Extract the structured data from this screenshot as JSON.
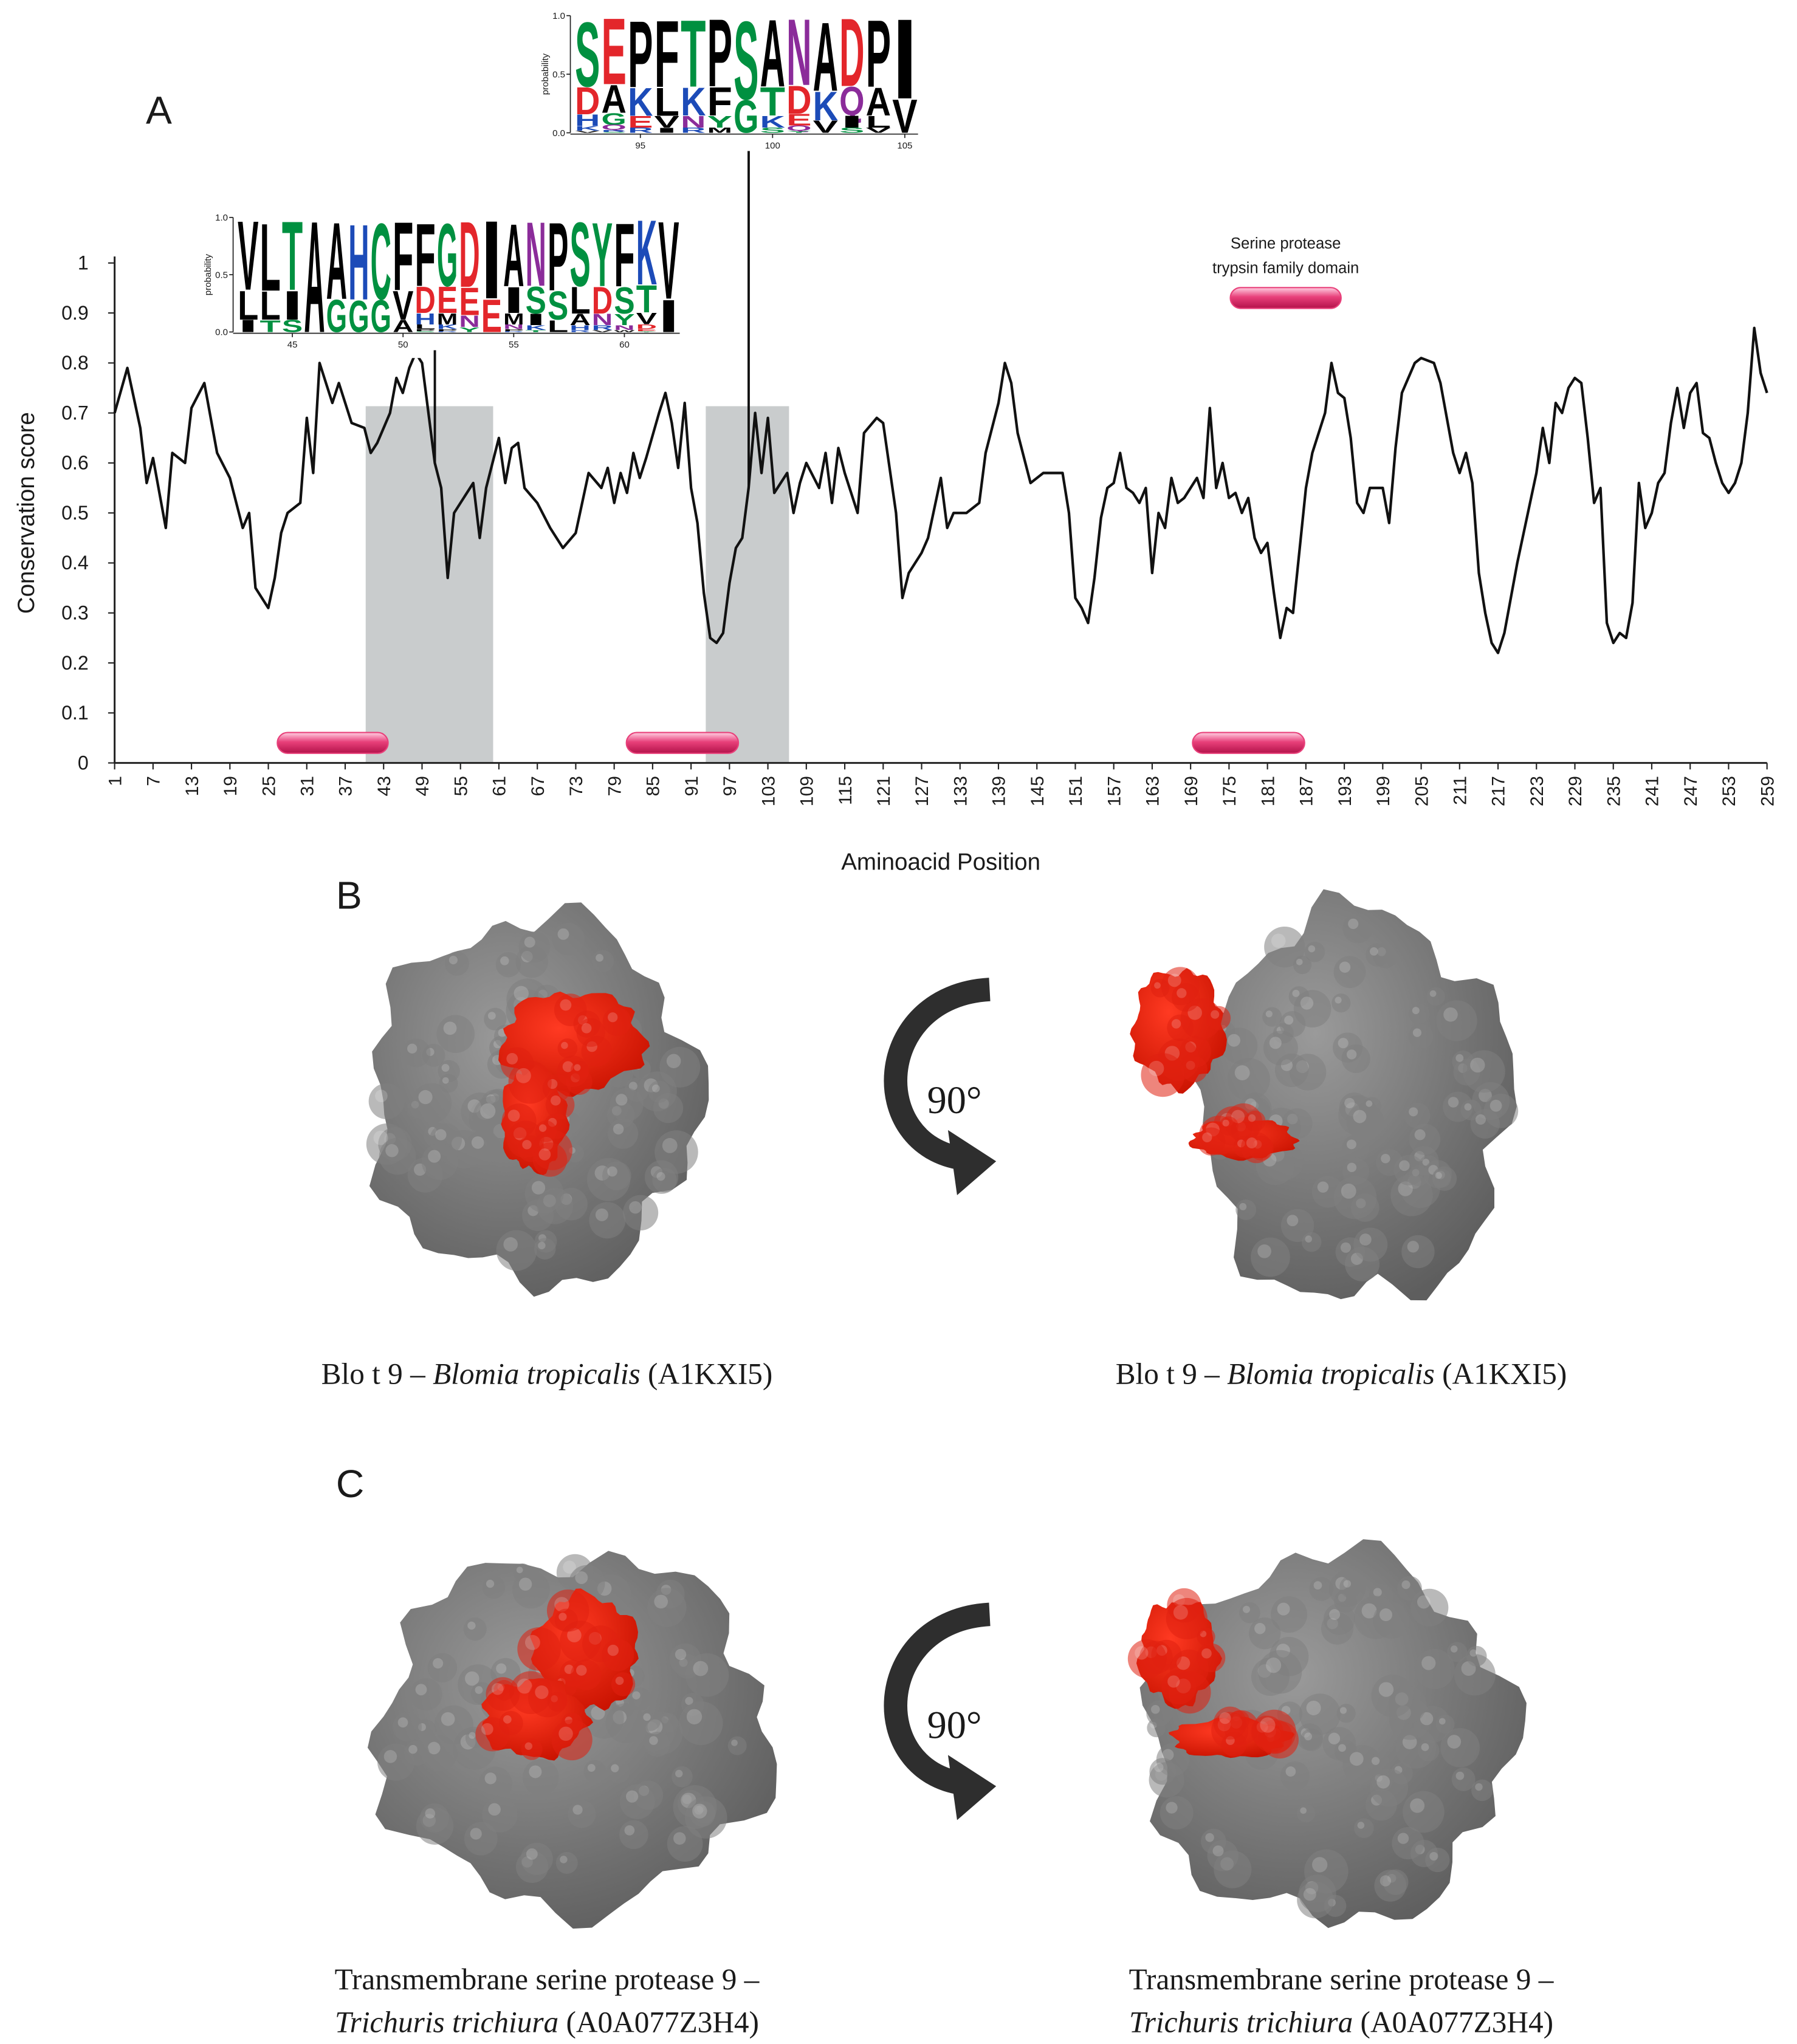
{
  "chart_data": {
    "type": "line",
    "panel": "A",
    "xlabel": "Aminoacid Position",
    "ylabel": "Conservation score",
    "xlim": [
      1,
      259
    ],
    "ylim": [
      0,
      1
    ],
    "xticks": [
      1,
      7,
      13,
      19,
      25,
      31,
      37,
      43,
      49,
      55,
      61,
      67,
      73,
      79,
      85,
      91,
      97,
      103,
      109,
      115,
      121,
      127,
      133,
      139,
      145,
      151,
      157,
      163,
      169,
      175,
      181,
      187,
      193,
      199,
      205,
      211,
      217,
      223,
      229,
      235,
      241,
      247,
      253,
      259
    ],
    "yticks": [
      0,
      0.1,
      0.2,
      0.3,
      0.4,
      0.5,
      0.6,
      0.7,
      0.8,
      0.9,
      1
    ],
    "x": [
      1,
      3,
      5,
      6,
      7,
      9,
      10,
      12,
      13,
      15,
      17,
      19,
      21,
      22,
      23,
      25,
      26,
      27,
      28,
      30,
      31,
      32,
      33,
      35,
      36,
      38,
      40,
      41,
      42,
      44,
      45,
      46,
      47,
      48,
      49,
      50,
      51,
      52,
      53,
      54,
      55,
      57,
      58,
      59,
      60,
      61,
      62,
      63,
      64,
      65,
      67,
      69,
      71,
      73,
      75,
      77,
      78,
      79,
      80,
      81,
      82,
      83,
      84,
      86,
      87,
      88,
      89,
      90,
      91,
      92,
      93,
      94,
      95,
      96,
      97,
      98,
      99,
      100,
      101,
      102,
      103,
      104,
      106,
      107,
      108,
      109,
      111,
      112,
      113,
      114,
      115,
      117,
      118,
      120,
      121,
      123,
      124,
      125,
      127,
      128,
      130,
      131,
      132,
      134,
      136,
      137,
      139,
      140,
      141,
      142,
      144,
      146,
      149,
      150,
      151,
      152,
      153,
      154,
      155,
      156,
      157,
      158,
      159,
      160,
      161,
      162,
      163,
      164,
      165,
      166,
      167,
      168,
      170,
      171,
      172,
      173,
      174,
      175,
      176,
      177,
      178,
      179,
      180,
      181,
      182,
      183,
      184,
      185,
      187,
      188,
      190,
      191,
      192,
      193,
      194,
      195,
      196,
      197,
      199,
      200,
      201,
      202,
      204,
      205,
      207,
      208,
      210,
      211,
      212,
      213,
      214,
      215,
      216,
      217,
      218,
      220,
      222,
      223,
      224,
      225,
      226,
      227,
      228,
      229,
      230,
      231,
      232,
      233,
      234,
      235,
      236,
      237,
      238,
      239,
      240,
      241,
      242,
      243,
      244,
      245,
      246,
      247,
      248,
      249,
      250,
      251,
      252,
      253,
      254,
      255,
      256,
      257,
      258,
      259
    ],
    "series": [
      {
        "color": "#111111",
        "values": [
          0.7,
          0.79,
          0.67,
          0.56,
          0.61,
          0.47,
          0.62,
          0.6,
          0.71,
          0.76,
          0.62,
          0.57,
          0.47,
          0.5,
          0.35,
          0.31,
          0.37,
          0.46,
          0.5,
          0.52,
          0.69,
          0.58,
          0.8,
          0.72,
          0.76,
          0.68,
          0.67,
          0.62,
          0.64,
          0.7,
          0.77,
          0.74,
          0.79,
          0.82,
          0.8,
          0.7,
          0.6,
          0.55,
          0.37,
          0.5,
          0.52,
          0.56,
          0.45,
          0.55,
          0.6,
          0.65,
          0.56,
          0.63,
          0.64,
          0.55,
          0.52,
          0.47,
          0.43,
          0.46,
          0.58,
          0.55,
          0.59,
          0.52,
          0.58,
          0.54,
          0.62,
          0.57,
          0.61,
          0.7,
          0.74,
          0.68,
          0.59,
          0.72,
          0.55,
          0.48,
          0.34,
          0.25,
          0.24,
          0.26,
          0.36,
          0.43,
          0.45,
          0.55,
          0.7,
          0.58,
          0.69,
          0.54,
          0.58,
          0.5,
          0.56,
          0.6,
          0.55,
          0.62,
          0.52,
          0.63,
          0.58,
          0.5,
          0.66,
          0.69,
          0.68,
          0.5,
          0.33,
          0.38,
          0.42,
          0.45,
          0.57,
          0.47,
          0.5,
          0.5,
          0.52,
          0.62,
          0.72,
          0.8,
          0.76,
          0.66,
          0.56,
          0.58,
          0.58,
          0.5,
          0.33,
          0.31,
          0.28,
          0.37,
          0.49,
          0.55,
          0.56,
          0.62,
          0.55,
          0.54,
          0.52,
          0.55,
          0.38,
          0.5,
          0.47,
          0.57,
          0.52,
          0.53,
          0.57,
          0.53,
          0.71,
          0.55,
          0.6,
          0.53,
          0.54,
          0.5,
          0.53,
          0.45,
          0.42,
          0.44,
          0.34,
          0.25,
          0.31,
          0.3,
          0.55,
          0.62,
          0.7,
          0.8,
          0.74,
          0.73,
          0.65,
          0.52,
          0.5,
          0.55,
          0.55,
          0.48,
          0.63,
          0.74,
          0.8,
          0.81,
          0.8,
          0.76,
          0.62,
          0.58,
          0.62,
          0.56,
          0.38,
          0.3,
          0.24,
          0.22,
          0.26,
          0.4,
          0.52,
          0.58,
          0.67,
          0.6,
          0.72,
          0.7,
          0.75,
          0.77,
          0.76,
          0.65,
          0.52,
          0.55,
          0.28,
          0.24,
          0.26,
          0.25,
          0.32,
          0.56,
          0.47,
          0.5,
          0.56,
          0.58,
          0.68,
          0.75,
          0.67,
          0.74,
          0.76,
          0.66,
          0.65,
          0.6,
          0.56,
          0.54,
          0.56,
          0.6,
          0.7,
          0.87,
          0.78,
          0.74
        ]
      }
    ],
    "shade_color": "#c9cccd",
    "shaded_regions": [
      [
        40.2,
        60.1
      ],
      [
        93.3,
        106.3
      ]
    ],
    "domain_color": "#e8407a",
    "domain_bars": [
      {
        "start": 26.4,
        "end": 43.7,
        "y": 0.04
      },
      {
        "start": 80.9,
        "end": 98.4,
        "y": 0.04
      },
      {
        "start": 169.3,
        "end": 186.8,
        "y": 0.04
      },
      {
        "start": 175.2,
        "end": 192.5,
        "y": 0.93,
        "label": [
          "Serine protease",
          "trypsin family domain"
        ]
      }
    ],
    "residue_colors": {
      "A": "#000000",
      "V": "#000000",
      "L": "#000000",
      "I": "#000000",
      "P": "#000000",
      "F": "#000000",
      "W": "#000000",
      "M": "#000000",
      "C": "#009040",
      "G": "#009040",
      "S": "#009040",
      "T": "#009040",
      "Y": "#009040",
      "N": "#8b2c9a",
      "Q": "#8b2c9a",
      "K": "#1c4bb8",
      "R": "#1c4bb8",
      "H": "#1c4bb8",
      "D": "#e3262b",
      "E": "#e3262b"
    },
    "logos": [
      {
        "ylabel": "probability",
        "anchor": 51,
        "xlim": [
          42.5,
          62.5
        ],
        "xticks": [
          45,
          50,
          55,
          60
        ],
        "yticks": [
          {
            "value": 0,
            "label": "0.0"
          },
          {
            "value": 0.5,
            "label": "0.5"
          },
          {
            "value": 1,
            "label": "1.0"
          }
        ],
        "columns": [
          [
            "V",
            "L",
            "I"
          ],
          [
            "L",
            "L",
            "T"
          ],
          [
            "T",
            "I",
            "S"
          ],
          [
            "A"
          ],
          [
            "A",
            "G"
          ],
          [
            "H",
            "G"
          ],
          [
            "C",
            "G"
          ],
          [
            "F",
            "V",
            "A"
          ],
          [
            "F",
            "D",
            "H",
            "L",
            "P",
            "S"
          ],
          [
            "G",
            "E",
            "M",
            "K",
            "P",
            "R"
          ],
          [
            "D",
            "E",
            "N",
            "Y"
          ],
          [
            "I",
            "E"
          ],
          [
            "A",
            "I",
            "M",
            "N",
            "P",
            "R"
          ],
          [
            "N",
            "S",
            "I",
            "K",
            "T"
          ],
          [
            "P",
            "S",
            "L"
          ],
          [
            "S",
            "L",
            "A",
            "H",
            "R"
          ],
          [
            "Y",
            "D",
            "N",
            "R",
            "V"
          ],
          [
            "F",
            "S",
            "Y",
            "N",
            "W"
          ],
          [
            "K",
            "T",
            "V",
            "D",
            "E",
            "Y"
          ],
          [
            "V",
            "I"
          ]
        ]
      },
      {
        "ylabel": "probability",
        "anchor": 100,
        "xlim": [
          92.5,
          105.5
        ],
        "xticks": [
          95,
          100,
          105
        ],
        "yticks": [
          {
            "value": 0,
            "label": "0.0"
          },
          {
            "value": 0.5,
            "label": "0.5"
          },
          {
            "value": 1,
            "label": "1.0"
          }
        ],
        "columns": [
          [
            "S",
            "D",
            "H",
            "K",
            "V"
          ],
          [
            "E",
            "A",
            "G",
            "Q",
            "R",
            "S"
          ],
          [
            "P",
            "K",
            "E",
            "R"
          ],
          [
            "F",
            "L",
            "V",
            "I"
          ],
          [
            "T",
            "K",
            "N",
            "R"
          ],
          [
            "P",
            "F",
            "Y",
            "M"
          ],
          [
            "S",
            "G"
          ],
          [
            "A",
            "T",
            "K",
            "S"
          ],
          [
            "N",
            "D",
            "E",
            "Q",
            "Y"
          ],
          [
            "A",
            "K",
            "V"
          ],
          [
            "D",
            "Q",
            "I",
            "S"
          ],
          [
            "P",
            "A",
            "L",
            "V"
          ],
          [
            "I",
            "V"
          ]
        ]
      }
    ]
  },
  "panels": [
    {
      "label": "B",
      "rotation": "90°",
      "captions": [
        {
          "prefix": "Blo t 9 – ",
          "species": "Blomia tropicalis",
          "suffix": " (A1KXI5)"
        },
        {
          "prefix": "Blo t 9 – ",
          "species": "Blomia tropicalis",
          "suffix": " (A1KXI5)"
        }
      ]
    },
    {
      "label": "C",
      "rotation": "90°",
      "captions": [
        {
          "prefix": "Transmembrane serine protease 9 –",
          "species": "Trichuris trichiura",
          "suffix": " (A0A077Z3H4)"
        },
        {
          "prefix": "Transmembrane serine protease 9 –",
          "species": "Trichuris trichiura",
          "suffix": " (A0A077Z3H4)"
        }
      ]
    }
  ]
}
